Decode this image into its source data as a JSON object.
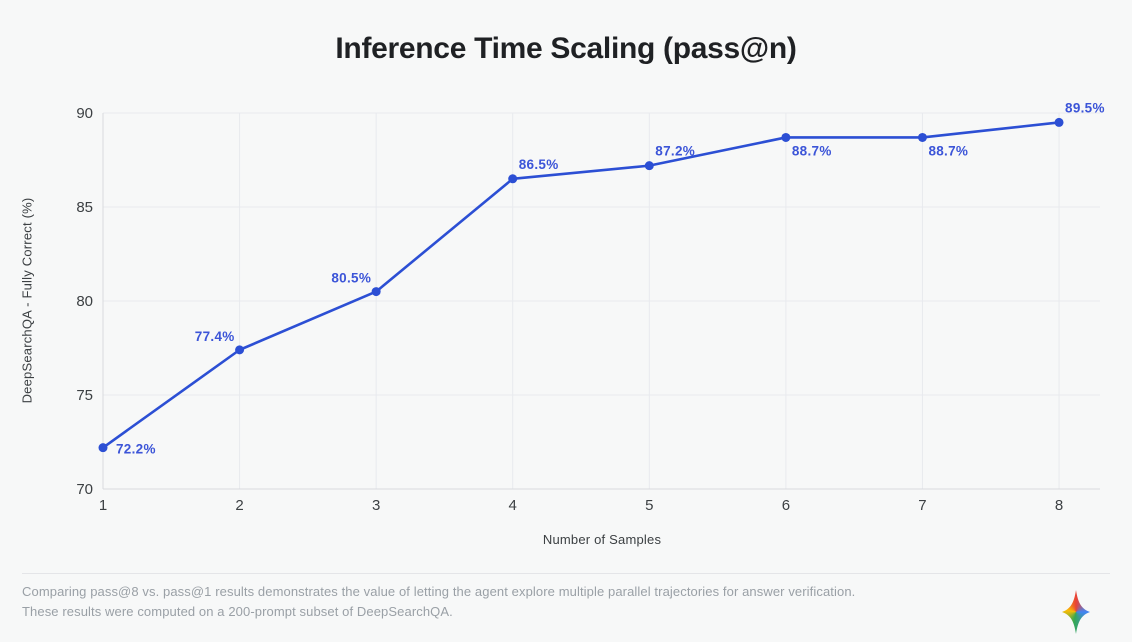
{
  "page": {
    "footer": {
      "line1": "Comparing pass@8 vs. pass@1 results demonstrates the value of letting the agent explore multiple parallel trajectories for answer verification.",
      "line2": "These results were computed on a 200-prompt subset of DeepSearchQA."
    },
    "logo": "gemini-sparkle-icon"
  },
  "chart_data": {
    "type": "line",
    "title": "Inference Time Scaling (pass@n)",
    "xlabel": "Number of Samples",
    "ylabel": "DeepSearchQA - Fully Correct (%)",
    "x": [
      1,
      2,
      3,
      4,
      5,
      6,
      7,
      8
    ],
    "values": [
      72.2,
      77.4,
      80.5,
      86.5,
      87.2,
      88.7,
      88.7,
      89.5
    ],
    "point_labels": [
      "72.2%",
      "77.4%",
      "80.5%",
      "86.5%",
      "87.2%",
      "88.7%",
      "88.7%",
      "89.5%"
    ],
    "label_positions": [
      "right",
      "above-left",
      "above-left",
      "above-right",
      "above-right",
      "below-right",
      "below-right",
      "above-right"
    ],
    "xlim": [
      1,
      8.3
    ],
    "ylim": [
      70,
      90
    ],
    "xticks": [
      1,
      2,
      3,
      4,
      5,
      6,
      7,
      8
    ],
    "yticks": [
      70,
      75,
      80,
      85,
      90
    ],
    "grid": true,
    "legend": "none",
    "colors": {
      "background": "#f7f8f8",
      "line": "#2c4fd4",
      "marker": "#2c4fd4",
      "point_label": "#3c55d8",
      "grid": "#e8eaee",
      "axis": "#d8dade",
      "tick_text": "#3c4043",
      "title_text": "#1f2124",
      "footer_text": "#9aa0a6",
      "divider": "#e4e5e8",
      "sparkle_red": "#ea4335",
      "sparkle_blue": "#4285f4",
      "sparkle_green": "#34a853",
      "sparkle_yellow": "#fbbc05"
    }
  }
}
